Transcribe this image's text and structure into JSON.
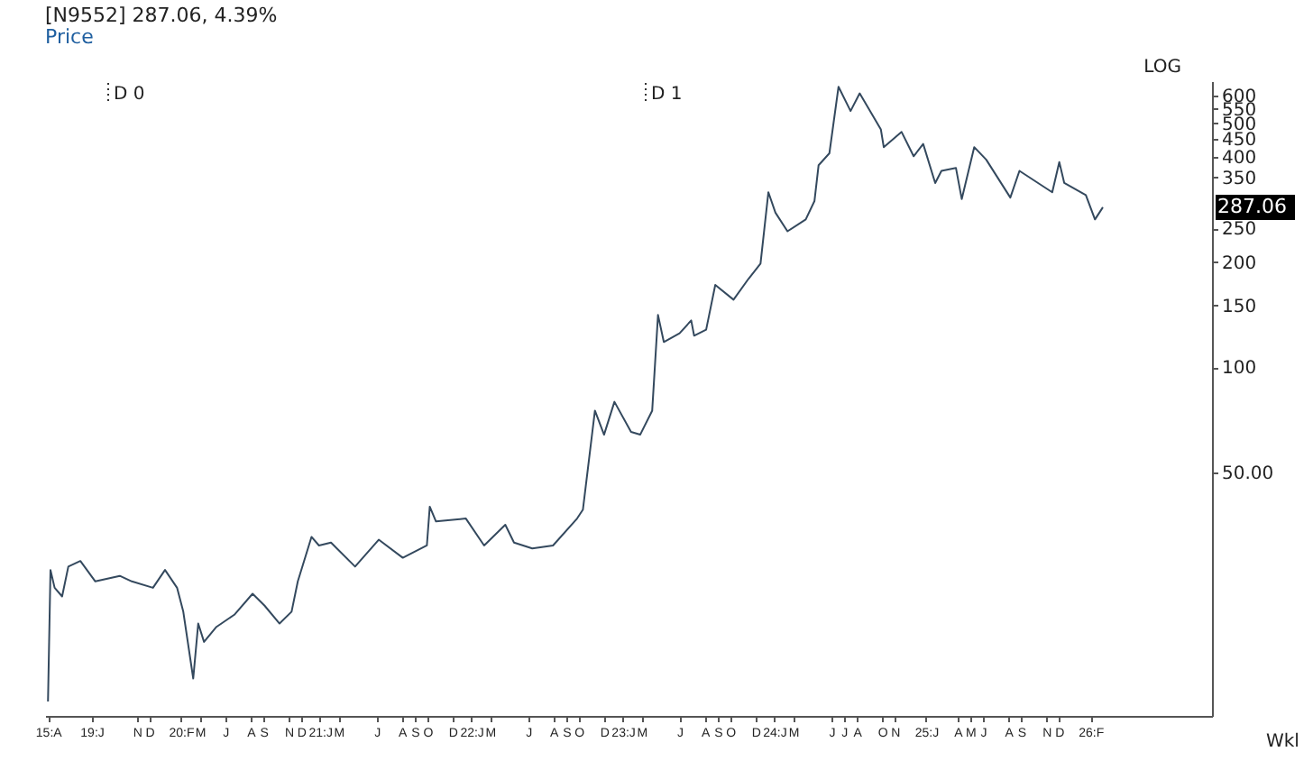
{
  "chart_data": {
    "type": "line",
    "title": "[N9552] 287.06, 4.39%",
    "subtitle": "Price",
    "x": [
      "2019-04-01",
      "2019-04-07",
      "2019-04-17",
      "2019-05-05",
      "2019-05-20",
      "2019-06-18",
      "2019-07-24",
      "2019-09-21",
      "2019-10-20",
      "2019-12-10",
      "2020-01-08",
      "2020-02-06",
      "2020-02-21",
      "2020-03-16",
      "2020-03-28",
      "2020-04-11",
      "2020-05-11",
      "2020-06-23",
      "2020-08-06",
      "2020-09-04",
      "2020-10-10",
      "2020-11-08",
      "2020-11-23",
      "2020-12-26",
      "2021-01-13",
      "2021-02-11",
      "2021-04-10",
      "2021-06-06",
      "2021-08-03",
      "2021-09-30",
      "2021-10-07",
      "2021-10-22",
      "2022-01-02",
      "2022-02-15",
      "2022-04-07",
      "2022-04-28",
      "2022-06-11",
      "2022-07-31",
      "2022-09-27",
      "2022-10-11",
      "2022-11-09",
      "2022-12-01",
      "2022-12-26",
      "2023-02-04",
      "2023-02-26",
      "2023-03-27",
      "2023-04-10",
      "2023-04-24",
      "2023-06-01",
      "2023-06-29",
      "2023-07-06",
      "2023-08-04",
      "2023-08-26",
      "2023-10-09",
      "2023-11-14",
      "2023-12-13",
      "2024-01-01",
      "2024-01-18",
      "2024-02-16",
      "2024-03-31",
      "2024-04-21",
      "2024-05-01",
      "2024-05-27",
      "2024-06-18",
      "2024-07-17",
      "2024-08-08",
      "2024-09-28",
      "2024-10-05",
      "2024-11-17",
      "2024-12-16",
      "2025-01-08",
      "2025-02-06",
      "2025-02-21",
      "2025-03-28",
      "2025-04-11",
      "2025-05-11",
      "2025-06-09",
      "2025-08-06",
      "2025-08-28",
      "2025-11-15",
      "2025-12-02",
      "2025-12-14",
      "2026-02-04",
      "2026-02-26",
      "2026-03-17"
    ],
    "series": [
      {
        "color": "#34495e",
        "values": [
          11.0,
          26.2,
          23.3,
          22.0,
          26.8,
          27.8,
          24.3,
          25.2,
          24.3,
          23.3,
          26.2,
          23.3,
          19.9,
          12.8,
          18.4,
          16.3,
          18.0,
          19.5,
          22.4,
          20.7,
          18.4,
          19.9,
          24.3,
          32.6,
          30.8,
          31.4,
          26.8,
          32.0,
          28.4,
          30.8,
          39.8,
          36.1,
          36.8,
          30.8,
          35.3,
          31.4,
          30.2,
          30.8,
          36.8,
          39.0,
          75.0,
          64.0,
          79.5,
          65.2,
          64.0,
          75.0,
          141,
          118,
          125,
          136,
          123,
          128,
          172,
          156,
          179,
          198,
          317,
          277,
          245,
          265,
          299,
          379,
          410,
          636,
          542,
          609,
          480,
          427,
          472,
          402,
          436,
          337,
          365,
          372,
          303,
          427,
          393,
          306,
          365,
          317,
          387,
          337,
          311,
          265,
          287.06
        ]
      }
    ],
    "log": "y",
    "xlim": [
      "2019-03-25",
      "2026-12-05"
    ],
    "xticks": [
      {
        "value": "2019-04-01",
        "label": "15:A"
      },
      {
        "value": "2019-07-15",
        "label": "19:J"
      },
      {
        "value": "2019-11-01",
        "label": "N"
      },
      {
        "value": "2019-12-01",
        "label": "D"
      },
      {
        "value": "2020-02-15",
        "label": "20:F"
      },
      {
        "value": "2020-04-01",
        "label": "M"
      },
      {
        "value": "2020-06-01",
        "label": "J"
      },
      {
        "value": "2020-08-01",
        "label": "A"
      },
      {
        "value": "2020-09-01",
        "label": "S"
      },
      {
        "value": "2020-11-01",
        "label": "N"
      },
      {
        "value": "2020-12-01",
        "label": "D"
      },
      {
        "value": "2021-01-15",
        "label": "21:J"
      },
      {
        "value": "2021-03-01",
        "label": "M"
      },
      {
        "value": "2021-06-01",
        "label": "J"
      },
      {
        "value": "2021-08-01",
        "label": "A"
      },
      {
        "value": "2021-09-01",
        "label": "S"
      },
      {
        "value": "2021-10-01",
        "label": "O"
      },
      {
        "value": "2021-12-01",
        "label": "D"
      },
      {
        "value": "2022-01-15",
        "label": "22:J"
      },
      {
        "value": "2022-03-01",
        "label": "M"
      },
      {
        "value": "2022-06-01",
        "label": "J"
      },
      {
        "value": "2022-08-01",
        "label": "A"
      },
      {
        "value": "2022-09-01",
        "label": "S"
      },
      {
        "value": "2022-10-01",
        "label": "O"
      },
      {
        "value": "2022-12-01",
        "label": "D"
      },
      {
        "value": "2023-01-15",
        "label": "23:J"
      },
      {
        "value": "2023-03-01",
        "label": "M"
      },
      {
        "value": "2023-06-01",
        "label": "J"
      },
      {
        "value": "2023-08-01",
        "label": "A"
      },
      {
        "value": "2023-09-01",
        "label": "S"
      },
      {
        "value": "2023-10-01",
        "label": "O"
      },
      {
        "value": "2023-12-01",
        "label": "D"
      },
      {
        "value": "2024-01-15",
        "label": "24:J"
      },
      {
        "value": "2024-03-01",
        "label": "M"
      },
      {
        "value": "2024-06-01",
        "label": "J"
      },
      {
        "value": "2024-07-01",
        "label": "J"
      },
      {
        "value": "2024-08-01",
        "label": "A"
      },
      {
        "value": "2024-10-01",
        "label": "O"
      },
      {
        "value": "2024-11-01",
        "label": "N"
      },
      {
        "value": "2025-01-15",
        "label": "25:J"
      },
      {
        "value": "2025-04-01",
        "label": "A"
      },
      {
        "value": "2025-05-01",
        "label": "M"
      },
      {
        "value": "2025-06-01",
        "label": "J"
      },
      {
        "value": "2025-08-01",
        "label": "A"
      },
      {
        "value": "2025-09-01",
        "label": "S"
      },
      {
        "value": "2025-11-01",
        "label": "N"
      },
      {
        "value": "2025-12-01",
        "label": "D"
      },
      {
        "value": "2026-02-15",
        "label": "26:F"
      }
    ],
    "ylim": [
      10,
      660
    ],
    "yticks": [
      {
        "value": 50,
        "label": "50.00"
      },
      100,
      150,
      200,
      250,
      350,
      400,
      450,
      500,
      550,
      600
    ],
    "annotations": [
      "D 0",
      "D 1",
      "LOG",
      "Wkl",
      {
        "text": "287.06",
        "y": 287.06
      }
    ]
  }
}
